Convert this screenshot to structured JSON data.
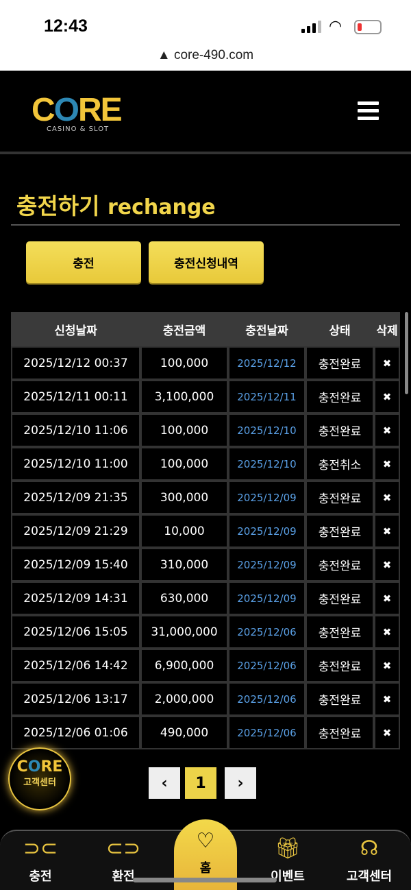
{
  "status": {
    "time": "12:43"
  },
  "browser": {
    "url": "core-490.com"
  },
  "header": {
    "logo_text": "CORE",
    "logo_sub": "CASINO & SLOT"
  },
  "page": {
    "title_ko": "충전하기",
    "title_en": "rechange"
  },
  "buttons": {
    "charge": "충전",
    "history": "충전신청내역"
  },
  "table": {
    "headers": [
      "신청날짜",
      "충전금액",
      "충전날짜",
      "상태",
      "삭제"
    ],
    "rows": [
      [
        "2025/12/12 00:37",
        "100,000",
        "2025/12/12",
        "충전완료"
      ],
      [
        "2025/12/11 00:11",
        "3,100,000",
        "2025/12/11",
        "충전완료"
      ],
      [
        "2025/12/10 11:06",
        "100,000",
        "2025/12/10",
        "충전완료"
      ],
      [
        "2025/12/10 11:00",
        "100,000",
        "2025/12/10",
        "충전취소"
      ],
      [
        "2025/12/09 21:35",
        "300,000",
        "2025/12/09",
        "충전완료"
      ],
      [
        "2025/12/09 21:29",
        "10,000",
        "2025/12/09",
        "충전완료"
      ],
      [
        "2025/12/09 15:40",
        "310,000",
        "2025/12/09",
        "충전완료"
      ],
      [
        "2025/12/09 14:31",
        "630,000",
        "2025/12/09",
        "충전완료"
      ],
      [
        "2025/12/06 15:05",
        "31,000,000",
        "2025/12/06",
        "충전완료"
      ],
      [
        "2025/12/06 14:42",
        "6,900,000",
        "2025/12/06",
        "충전완료"
      ],
      [
        "2025/12/06 13:17",
        "2,000,000",
        "2025/12/06",
        "충전완료"
      ],
      [
        "2025/12/06 01:06",
        "490,000",
        "2025/12/06",
        "충전완료"
      ]
    ],
    "delete_glyph": "✖"
  },
  "pagination": {
    "prev": "‹",
    "current": "1",
    "next": "›"
  },
  "support_badge": {
    "logo": "CORE",
    "label": "고객센터"
  },
  "bottom_nav": [
    {
      "label": "충전",
      "icon": "charge-icon"
    },
    {
      "label": "환전",
      "icon": "exchange-icon"
    },
    {
      "label": "홈",
      "icon": "home-heart-icon"
    },
    {
      "label": "이벤트",
      "icon": "gift-icon"
    },
    {
      "label": "고객센터",
      "icon": "support-agent-icon"
    }
  ],
  "colors": {
    "accent": "#f1d54b",
    "date_blue": "#5aa0e6",
    "logo_blue": "#2d88b5"
  }
}
